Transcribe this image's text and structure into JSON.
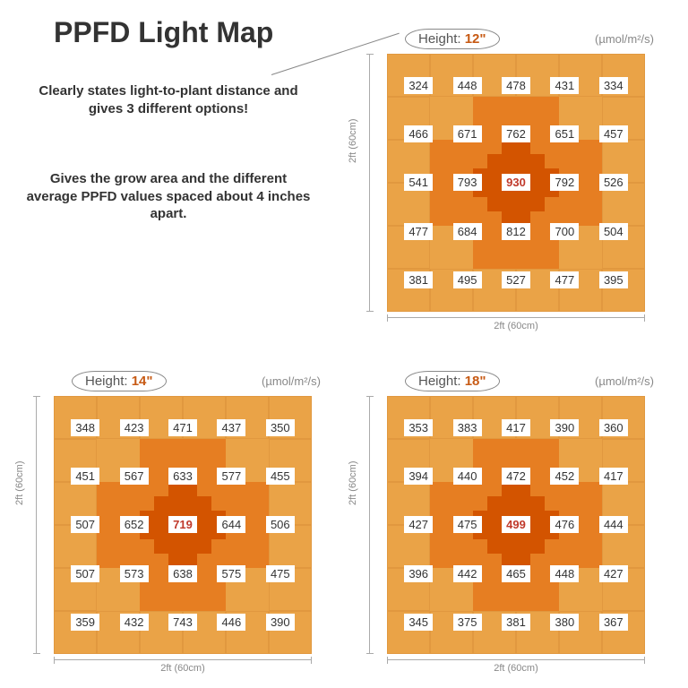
{
  "title": "PPFD Light Map",
  "desc1": "Clearly states light-to-plant distance and gives 3 different options!",
  "desc2": "Gives the grow area and the different average PPFD values spaced about 4 inches apart.",
  "unit": "(µmol/m²/s)",
  "axis_label": "2ft (60cm)",
  "height_prefix": "Height: ",
  "colors": {
    "bg_outer": "#eaa347",
    "bg_mid": "#e67e22",
    "bg_center": "#d35400",
    "center_text": "#c0392b"
  },
  "panels": [
    {
      "key": "h12",
      "height": "12\"",
      "values": [
        [
          324,
          448,
          478,
          431,
          334
        ],
        [
          466,
          671,
          762,
          651,
          457
        ],
        [
          541,
          793,
          930,
          792,
          526
        ],
        [
          477,
          684,
          812,
          700,
          504
        ],
        [
          381,
          495,
          527,
          477,
          395
        ]
      ]
    },
    {
      "key": "h14",
      "height": "14\"",
      "values": [
        [
          348,
          423,
          471,
          437,
          350
        ],
        [
          451,
          567,
          633,
          577,
          455
        ],
        [
          507,
          652,
          719,
          644,
          506
        ],
        [
          507,
          573,
          638,
          575,
          475
        ],
        [
          359,
          432,
          743,
          446,
          390
        ]
      ]
    },
    {
      "key": "h18",
      "height": "18\"",
      "values": [
        [
          353,
          383,
          417,
          390,
          360
        ],
        [
          394,
          440,
          472,
          452,
          417
        ],
        [
          427,
          475,
          499,
          476,
          444
        ],
        [
          396,
          442,
          465,
          448,
          427
        ],
        [
          345,
          375,
          381,
          380,
          367
        ]
      ]
    }
  ]
}
